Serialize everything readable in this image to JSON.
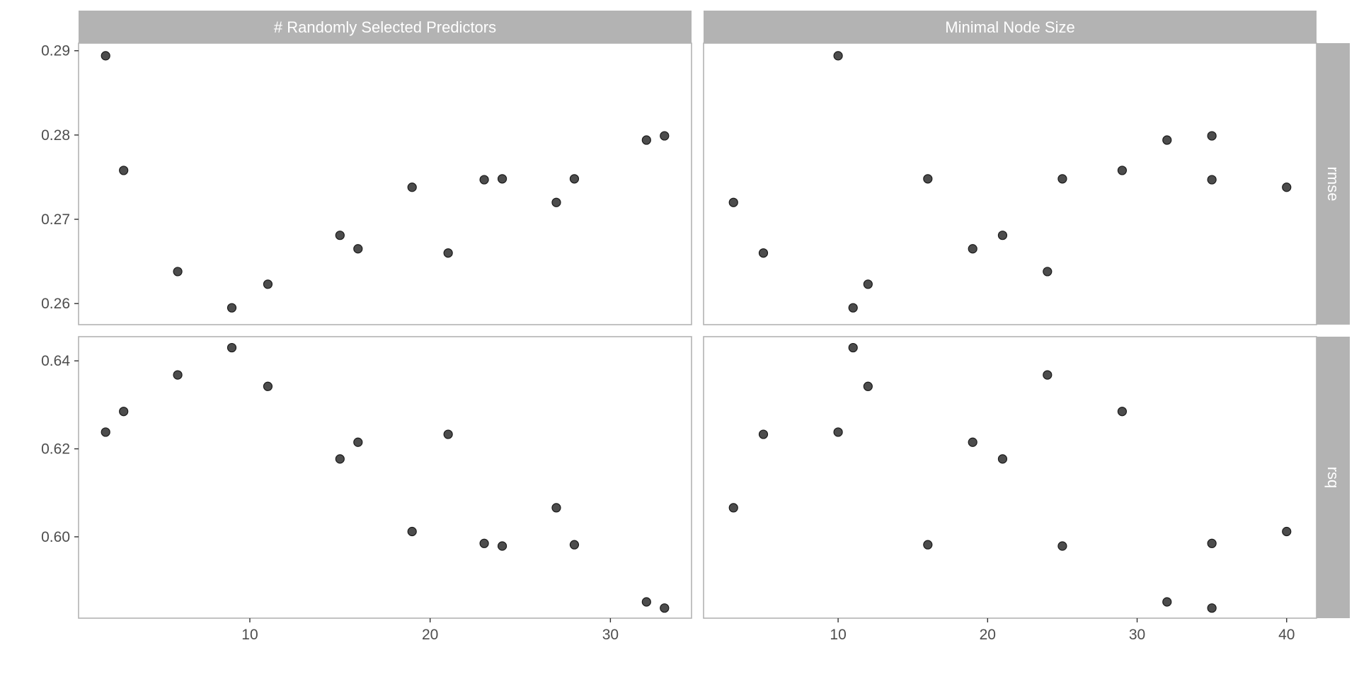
{
  "chart_data": {
    "type": "scatter",
    "facet_layout": "grid",
    "grid": true,
    "legend": "none",
    "colors": {
      "point": "#333333",
      "strip": "#b3b3b3",
      "strip_text": "#ffffff",
      "gridline": "#ebebeb",
      "panel_border": "#b3b3b3"
    },
    "columns": [
      {
        "label": "# Randomly Selected Predictors",
        "xlim": [
          0.5,
          34.5
        ],
        "xticks": [
          10,
          20,
          30
        ]
      },
      {
        "label": "Minimal Node Size",
        "xlim": [
          1.0,
          42.0
        ],
        "xticks": [
          10,
          20,
          30,
          40
        ]
      }
    ],
    "rows": [
      {
        "label": "rmse",
        "ylim": [
          0.2575,
          0.2909
        ],
        "yticks": [
          0.26,
          0.27,
          0.28,
          0.29
        ],
        "ytick_labels": [
          "0.26",
          "0.27",
          "0.28",
          "0.29"
        ]
      },
      {
        "label": "rsq",
        "ylim": [
          0.5815,
          0.6455
        ],
        "yticks": [
          0.6,
          0.62,
          0.64
        ],
        "ytick_labels": [
          "0.60",
          "0.62",
          "0.64"
        ]
      }
    ],
    "panels": [
      {
        "row": "rmse",
        "column": "# Randomly Selected Predictors",
        "x": [
          2,
          3,
          6,
          9,
          11,
          15,
          16,
          19,
          21,
          23,
          24,
          27,
          28,
          32,
          33
        ],
        "y": [
          0.2894,
          0.2758,
          0.2638,
          0.2595,
          0.2623,
          0.2681,
          0.2665,
          0.2738,
          0.266,
          0.2747,
          0.2748,
          0.272,
          0.2748,
          0.2794,
          0.2799
        ]
      },
      {
        "row": "rmse",
        "column": "Minimal Node Size",
        "x": [
          3,
          5,
          10,
          11,
          12,
          16,
          19,
          21,
          24,
          25,
          29,
          32,
          35,
          35,
          40
        ],
        "y": [
          0.272,
          0.266,
          0.2894,
          0.2595,
          0.2623,
          0.2748,
          0.2665,
          0.2681,
          0.2638,
          0.2748,
          0.2758,
          0.2794,
          0.2799,
          0.2747,
          0.2738
        ]
      },
      {
        "row": "rsq",
        "column": "# Randomly Selected Predictors",
        "x": [
          2,
          3,
          6,
          9,
          11,
          15,
          16,
          19,
          21,
          23,
          24,
          27,
          28,
          32,
          33
        ],
        "y": [
          0.6238,
          0.6285,
          0.6368,
          0.643,
          0.6342,
          0.6177,
          0.6215,
          0.6012,
          0.6233,
          0.5985,
          0.5979,
          0.6066,
          0.5982,
          0.5852,
          0.5838
        ]
      },
      {
        "row": "rsq",
        "column": "Minimal Node Size",
        "x": [
          3,
          5,
          10,
          11,
          12,
          16,
          19,
          21,
          24,
          25,
          29,
          32,
          35,
          35,
          40
        ],
        "y": [
          0.6066,
          0.6233,
          0.6238,
          0.643,
          0.6342,
          0.5982,
          0.6215,
          0.6177,
          0.6368,
          0.5979,
          0.6285,
          0.5852,
          0.5985,
          0.5838,
          0.6012
        ]
      }
    ]
  }
}
